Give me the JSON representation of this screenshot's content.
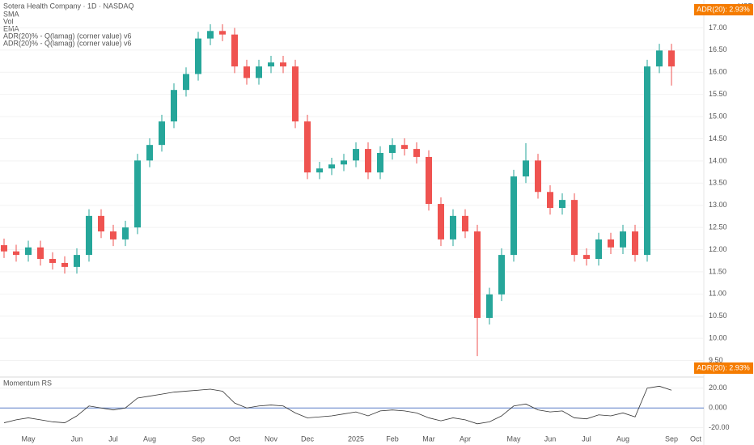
{
  "chart_data": {
    "type": "candlestick",
    "title": "Sotera Health Company · 1D · NASDAQ",
    "legend_lines": [
      "SMA",
      "Vol",
      "EMA",
      "ADR(20)% - Q(lamag) (corner value) v6",
      "ADR(20)% - Q(lamag) (corner value) v6"
    ],
    "currency": "USD",
    "badge_top": "ADR(20): 2.93%",
    "badge_bottom": "ADR(20): 2.93%",
    "categories": [
      null,
      null,
      "May",
      null,
      null,
      null,
      "Jun",
      null,
      null,
      "Jul",
      null,
      null,
      "Aug",
      null,
      null,
      null,
      "Sep",
      null,
      null,
      "Oct",
      null,
      null,
      "Nov",
      null,
      null,
      "Dec",
      null,
      null,
      null,
      "2025",
      null,
      null,
      "Feb",
      null,
      null,
      "Mar",
      null,
      null,
      "Apr",
      null,
      null,
      null,
      "May",
      null,
      null,
      "Jun",
      null,
      null,
      "Jul",
      null,
      null,
      "Aug",
      null,
      null,
      null,
      "Sep",
      null,
      "Oct"
    ],
    "open": [
      12.1,
      11.96,
      11.88,
      12.05,
      11.79,
      11.7,
      11.61,
      11.88,
      12.76,
      12.41,
      12.23,
      12.5,
      14.01,
      14.36,
      14.89,
      15.6,
      15.96,
      16.76,
      16.93,
      16.85,
      16.13,
      15.87,
      16.13,
      16.22,
      16.13,
      14.89,
      13.74,
      13.83,
      13.92,
      14.01,
      14.27,
      13.74,
      14.18,
      14.36,
      14.27,
      14.09,
      13.03,
      12.23,
      12.76,
      12.41,
      10.46,
      10.99,
      11.88,
      13.65,
      14.01,
      13.3,
      12.94,
      13.12,
      11.88,
      11.79,
      12.23,
      12.05,
      12.41,
      11.88,
      16.13,
      16.49,
      null,
      null
    ],
    "high": [
      12.25,
      12.11,
      12.2,
      12.2,
      11.94,
      11.85,
      12.03,
      12.91,
      12.91,
      12.56,
      12.65,
      14.16,
      14.51,
      15.04,
      15.75,
      16.11,
      16.91,
      17.08,
      17.08,
      17.0,
      16.28,
      16.28,
      16.37,
      16.37,
      16.28,
      15.04,
      13.98,
      14.07,
      14.16,
      14.42,
      14.42,
      14.33,
      14.51,
      14.51,
      14.42,
      14.24,
      13.18,
      12.91,
      12.91,
      12.56,
      11.14,
      12.03,
      13.8,
      14.4,
      14.16,
      13.45,
      13.27,
      13.27,
      12.03,
      12.38,
      12.38,
      12.56,
      12.56,
      16.28,
      16.64,
      16.64,
      null,
      null
    ],
    "low": [
      11.81,
      11.73,
      11.73,
      11.64,
      11.55,
      11.46,
      11.46,
      11.73,
      12.26,
      12.08,
      12.08,
      12.35,
      13.86,
      14.21,
      14.74,
      15.45,
      15.81,
      16.61,
      16.7,
      15.98,
      15.72,
      15.72,
      15.98,
      15.98,
      14.74,
      13.59,
      13.59,
      13.68,
      13.77,
      13.86,
      13.59,
      13.59,
      14.03,
      14.12,
      13.94,
      12.88,
      12.08,
      12.08,
      12.26,
      9.6,
      10.31,
      10.84,
      11.73,
      13.5,
      13.15,
      12.79,
      12.79,
      11.73,
      11.64,
      11.64,
      11.9,
      11.9,
      11.73,
      11.73,
      15.98,
      15.7,
      null,
      null
    ],
    "close": [
      11.96,
      11.88,
      12.05,
      11.79,
      11.7,
      11.61,
      11.88,
      12.76,
      12.41,
      12.23,
      12.5,
      14.01,
      14.36,
      14.89,
      15.6,
      15.96,
      16.76,
      16.93,
      16.85,
      16.13,
      15.87,
      16.13,
      16.22,
      16.13,
      14.89,
      13.74,
      13.83,
      13.92,
      14.01,
      14.27,
      13.74,
      14.18,
      14.36,
      14.27,
      14.09,
      13.03,
      12.23,
      12.76,
      12.41,
      10.46,
      10.99,
      11.88,
      13.65,
      14.01,
      13.3,
      12.94,
      13.12,
      11.88,
      11.79,
      12.23,
      12.05,
      12.41,
      11.88,
      16.13,
      16.49,
      16.13,
      null,
      null
    ],
    "up_color": "#26a69a",
    "down_color": "#ef5350",
    "ylim": [
      9.2,
      17.3
    ],
    "yticks": [
      {
        "value": 9.5,
        "label": "9.50"
      },
      {
        "value": 10,
        "label": "10.00"
      },
      {
        "value": 10.5,
        "label": "10.50"
      },
      {
        "value": 11,
        "label": "11.00"
      },
      {
        "value": 11.5,
        "label": "11.50"
      },
      {
        "value": 12,
        "label": "12.00"
      },
      {
        "value": 12.5,
        "label": "12.50"
      },
      {
        "value": 13,
        "label": "13.00"
      },
      {
        "value": 13.5,
        "label": "13.50"
      },
      {
        "value": 14,
        "label": "14.00"
      },
      {
        "value": 14.5,
        "label": "14.50"
      },
      {
        "value": 15,
        "label": "15.00"
      },
      {
        "value": 15.5,
        "label": "15.50"
      },
      {
        "value": 16,
        "label": "16.00"
      },
      {
        "value": 16.5,
        "label": "16.50"
      },
      {
        "value": 17,
        "label": "17.00"
      }
    ],
    "indicator": {
      "name": "Momentum RS",
      "color": "#333333",
      "values": [
        -15,
        -12,
        -10,
        -12,
        -14,
        -15,
        -8,
        2,
        0,
        -2,
        0,
        10,
        12,
        14,
        16,
        17,
        18,
        19,
        17,
        5,
        0,
        2,
        3,
        2,
        -5,
        -10,
        -9,
        -8,
        -6,
        -4,
        -8,
        -3,
        -2,
        -3,
        -5,
        -10,
        -13,
        -10,
        -12,
        -16,
        -14,
        -8,
        2,
        4,
        -2,
        -4,
        -3,
        -10,
        -11,
        -7,
        -8,
        -5,
        -9,
        20,
        22,
        18,
        null,
        null
      ],
      "ylim": [
        -26,
        28
      ],
      "yticks": [
        {
          "value": 20,
          "label": "20.00"
        },
        {
          "value": 0,
          "label": "0.000"
        },
        {
          "value": -20,
          "label": "-20.00"
        }
      ]
    }
  }
}
